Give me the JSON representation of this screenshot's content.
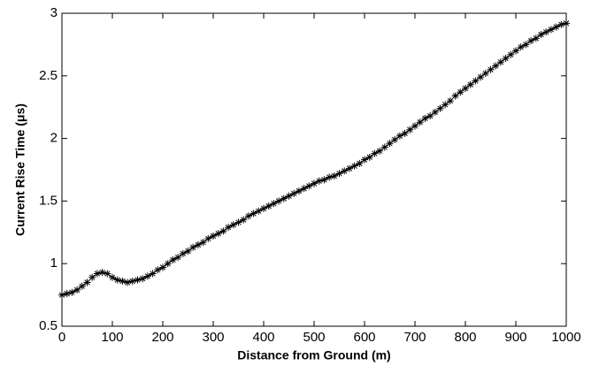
{
  "chart_data": {
    "type": "line",
    "xlabel": "Distance from Ground (m)",
    "ylabel": "Current Rise Time (μs)",
    "xlim": [
      0,
      1000
    ],
    "ylim": [
      0.5,
      3
    ],
    "xticks": [
      0,
      100,
      200,
      300,
      400,
      500,
      600,
      700,
      800,
      900,
      1000
    ],
    "yticks": [
      0.5,
      1,
      1.5,
      2,
      2.5,
      3
    ],
    "series": [
      {
        "color": "#000000",
        "x": [
          0,
          10,
          20,
          30,
          40,
          50,
          60,
          70,
          80,
          90,
          100,
          110,
          120,
          130,
          140,
          150,
          160,
          170,
          180,
          190,
          200,
          210,
          220,
          230,
          240,
          250,
          260,
          270,
          280,
          290,
          300,
          310,
          320,
          330,
          340,
          350,
          360,
          370,
          380,
          390,
          400,
          410,
          420,
          430,
          440,
          450,
          460,
          470,
          480,
          490,
          500,
          510,
          520,
          530,
          540,
          550,
          560,
          570,
          580,
          590,
          600,
          610,
          620,
          630,
          640,
          650,
          660,
          670,
          680,
          690,
          700,
          710,
          720,
          730,
          740,
          750,
          760,
          770,
          780,
          790,
          800,
          810,
          820,
          830,
          840,
          850,
          860,
          870,
          880,
          890,
          900,
          910,
          920,
          930,
          940,
          950,
          960,
          970,
          980,
          990,
          1000
        ],
        "values": [
          0.75,
          0.76,
          0.77,
          0.79,
          0.82,
          0.85,
          0.89,
          0.92,
          0.93,
          0.92,
          0.89,
          0.87,
          0.86,
          0.85,
          0.86,
          0.87,
          0.88,
          0.9,
          0.92,
          0.95,
          0.97,
          1.0,
          1.03,
          1.05,
          1.08,
          1.1,
          1.13,
          1.15,
          1.17,
          1.2,
          1.22,
          1.24,
          1.26,
          1.29,
          1.31,
          1.33,
          1.35,
          1.38,
          1.4,
          1.42,
          1.44,
          1.46,
          1.48,
          1.5,
          1.52,
          1.54,
          1.56,
          1.58,
          1.6,
          1.62,
          1.64,
          1.66,
          1.67,
          1.69,
          1.7,
          1.72,
          1.74,
          1.76,
          1.78,
          1.8,
          1.83,
          1.85,
          1.88,
          1.9,
          1.93,
          1.96,
          1.99,
          2.02,
          2.04,
          2.07,
          2.1,
          2.13,
          2.16,
          2.18,
          2.21,
          2.24,
          2.27,
          2.3,
          2.34,
          2.37,
          2.4,
          2.43,
          2.46,
          2.49,
          2.52,
          2.55,
          2.58,
          2.61,
          2.64,
          2.67,
          2.7,
          2.73,
          2.75,
          2.78,
          2.8,
          2.83,
          2.85,
          2.87,
          2.89,
          2.91,
          2.92
        ]
      }
    ]
  }
}
